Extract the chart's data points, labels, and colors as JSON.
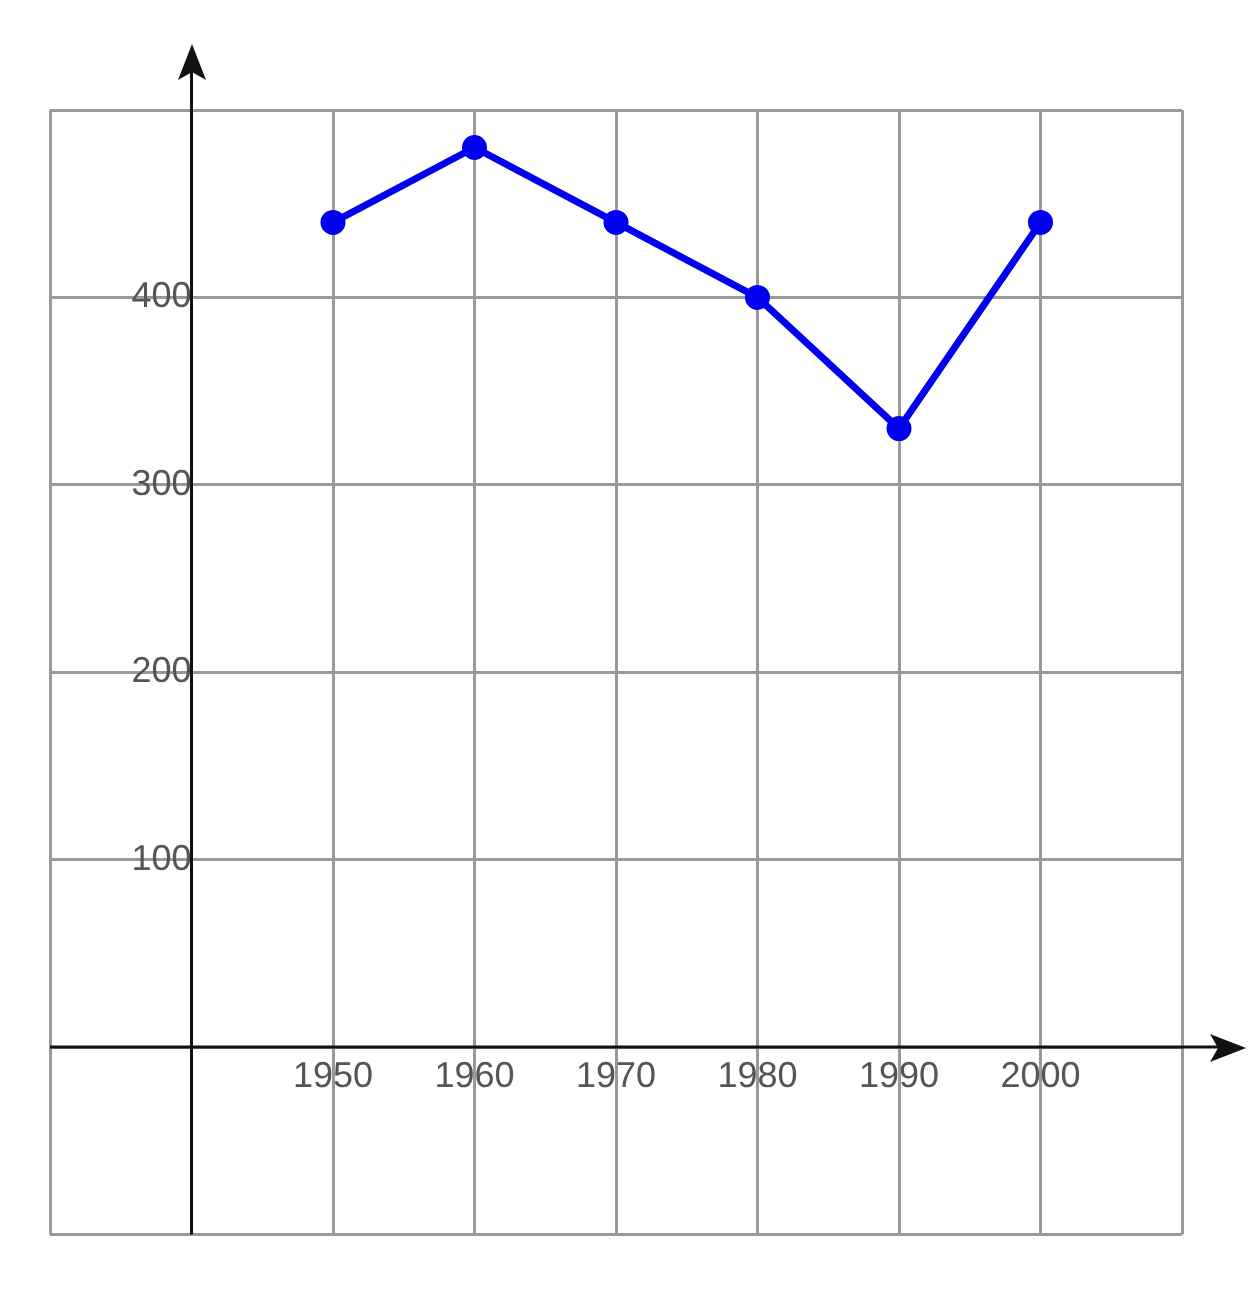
{
  "chart_data": {
    "type": "line",
    "x": [
      1950,
      1960,
      1970,
      1980,
      1990,
      2000
    ],
    "series": [
      {
        "color": "#0000ee",
        "values": [
          440,
          480,
          440,
          400,
          330,
          440
        ]
      }
    ],
    "xlim": [
      1930,
      2010
    ],
    "xticks": [
      {
        "value": 1930,
        "label": null
      },
      {
        "value": 1940,
        "label": null
      },
      1950,
      1960,
      1970,
      1980,
      1990,
      2000,
      {
        "value": 2010,
        "label": null
      }
    ],
    "ylim": [
      -100,
      500
    ],
    "yticks": [
      {
        "value": -100,
        "label": null
      },
      {
        "value": 0,
        "label": null
      },
      100,
      200,
      300,
      400,
      {
        "value": 500,
        "label": null
      }
    ],
    "grid": true,
    "marker": "circle",
    "line_style": "solid",
    "legend": false
  }
}
